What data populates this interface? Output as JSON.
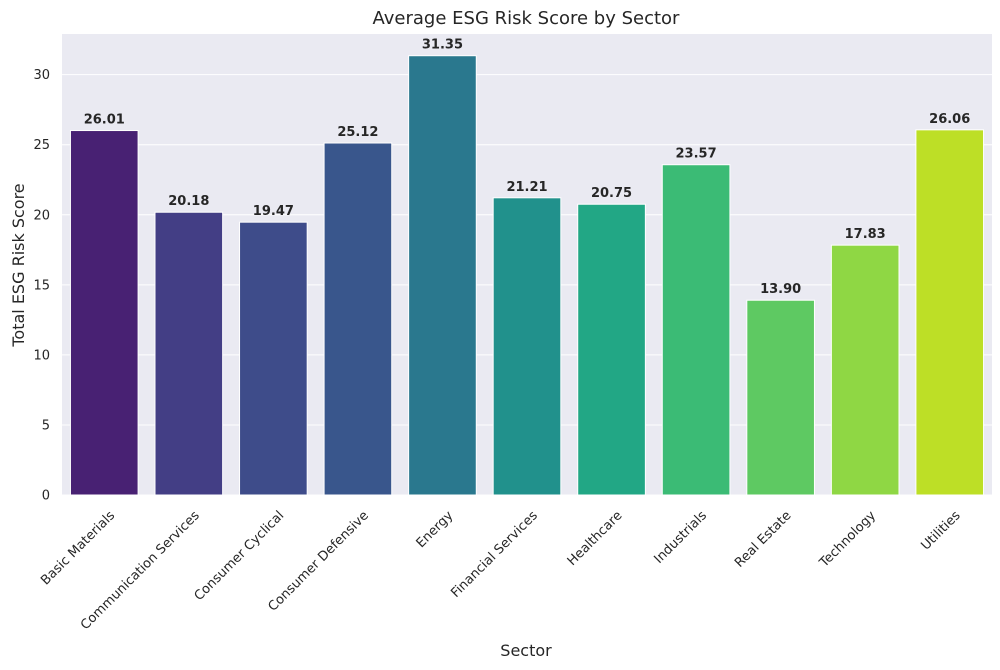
{
  "chart_data": {
    "type": "bar",
    "title": "Average ESG Risk Score by Sector",
    "xlabel": "Sector",
    "ylabel": "Total ESG Risk Score",
    "categories": [
      "Basic Materials",
      "Communication Services",
      "Consumer Cyclical",
      "Consumer Defensive",
      "Energy",
      "Financial Services",
      "Healthcare",
      "Industrials",
      "Real Estate",
      "Technology",
      "Utilities"
    ],
    "values": [
      26.01,
      20.18,
      19.47,
      25.12,
      31.35,
      21.21,
      20.75,
      23.57,
      13.9,
      17.83,
      26.06
    ],
    "value_labels": [
      "26.01",
      "20.18",
      "19.47",
      "25.12",
      "31.35",
      "21.21",
      "20.75",
      "23.57",
      "13.90",
      "17.83",
      "26.06"
    ],
    "colors": [
      "#482173",
      "#433e85",
      "#3e4c8a",
      "#39568c",
      "#2a788e",
      "#21918c",
      "#22a785",
      "#3bbb75",
      "#5ec962",
      "#8fd744",
      "#bddf26"
    ],
    "yticks": [
      "0",
      "5",
      "10",
      "15",
      "20",
      "25",
      "30"
    ],
    "ylim": [
      0,
      32.9
    ],
    "grid": true,
    "background": "#eaeaf2"
  }
}
